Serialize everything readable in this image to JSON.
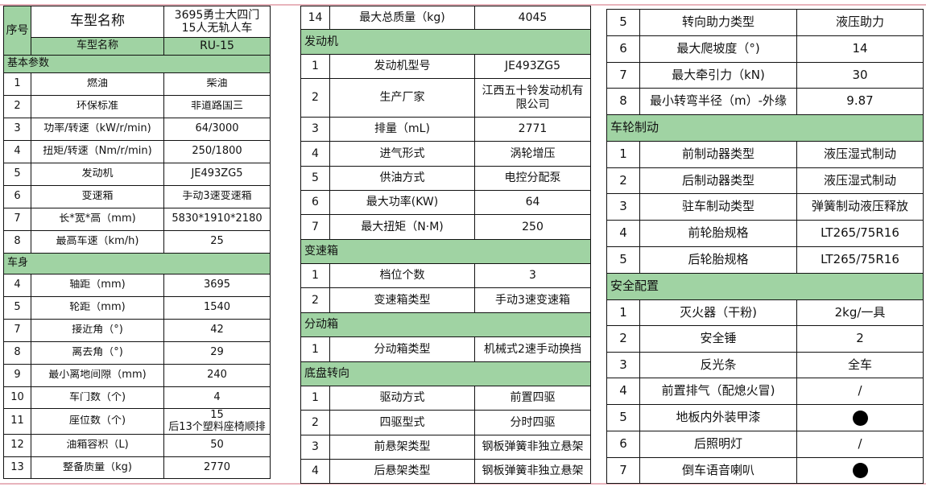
{
  "header": {
    "seq_label": "序号",
    "model_name_label": "车型名称",
    "model_name_value": "3695勇士大四门\n15人无轨人车",
    "model_code_label": "车型名称",
    "model_code_value": "RU-15"
  },
  "tables": [
    {
      "rows": [
        {
          "section": "基本参数"
        },
        {
          "no": "1",
          "name": "燃油",
          "value": "柴油"
        },
        {
          "no": "2",
          "name": "环保标准",
          "value": "非道路国三"
        },
        {
          "no": "3",
          "name": "功率/转速（kW/r/min)",
          "value": "64/3000"
        },
        {
          "no": "4",
          "name": "扭矩/转速（Nm/r/min)",
          "value": "250/1800"
        },
        {
          "no": "5",
          "name": "发动机",
          "value": "JE493ZG5"
        },
        {
          "no": "6",
          "name": "变速箱",
          "value": "手动3速变速箱"
        },
        {
          "no": "7",
          "name": "长*宽*高（mm)",
          "value": "5830*1910*2180"
        },
        {
          "no": "8",
          "name": "最高车速（km/h)",
          "value": "25"
        },
        {
          "section": "车身"
        },
        {
          "no": "4",
          "name": "轴距（mm)",
          "value": "3695"
        },
        {
          "no": "5",
          "name": "轮距（mm)",
          "value": "1540"
        },
        {
          "no": "7",
          "name": "接近角（°)",
          "value": "42"
        },
        {
          "no": "8",
          "name": "离去角（°)",
          "value": "29"
        },
        {
          "no": "9",
          "name": "最小离地间隙（mm)",
          "value": "240"
        },
        {
          "no": "10",
          "name": "车门数（个)",
          "value": "4"
        },
        {
          "no": "11",
          "name": "座位数（个)",
          "value": "15\n后13个塑料座椅顺排"
        },
        {
          "no": "12",
          "name": "油箱容积（L)",
          "value": "50"
        },
        {
          "no": "13",
          "name": "整备质量（kg)",
          "value": "2770"
        }
      ]
    },
    {
      "rows": [
        {
          "no": "14",
          "name": "最大总质量（kg)",
          "value": "4045"
        },
        {
          "section": "发动机"
        },
        {
          "no": "1",
          "name": "发动机型号",
          "value": "JE493ZG5"
        },
        {
          "no": "2",
          "name": "生产厂家",
          "value": "江西五十铃发动机有\n限公司"
        },
        {
          "no": "3",
          "name": "排量（mL)",
          "value": "2771"
        },
        {
          "no": "4",
          "name": "进气形式",
          "value": "涡轮增压"
        },
        {
          "no": "5",
          "name": "供油方式",
          "value": "电控分配泵"
        },
        {
          "no": "6",
          "name": "最大功率(KW)",
          "value": "64"
        },
        {
          "no": "7",
          "name": "最大扭矩（N·M)",
          "value": "250"
        },
        {
          "section": "变速箱"
        },
        {
          "no": "1",
          "name": "档位个数",
          "value": "3"
        },
        {
          "no": "2",
          "name": "变速箱类型",
          "value": "手动3速变速箱"
        },
        {
          "section": "分动箱"
        },
        {
          "no": "1",
          "name": "分动箱类型",
          "value": "机械式2速手动换挡"
        },
        {
          "section": "底盘转向"
        },
        {
          "no": "1",
          "name": "驱动方式",
          "value": "前置四驱"
        },
        {
          "no": "2",
          "name": "四驱型式",
          "value": "分时四驱"
        },
        {
          "no": "3",
          "name": "前悬架类型",
          "value": "钢板弹簧非独立悬架"
        },
        {
          "no": "4",
          "name": "后悬架类型",
          "value": "钢板弹簧非独立悬架"
        }
      ]
    },
    {
      "rows": [
        {
          "no": "5",
          "name": "转向助力类型",
          "value": "液压助力"
        },
        {
          "no": "6",
          "name": "最大爬坡度（°)",
          "value": "14"
        },
        {
          "no": "7",
          "name": "最大牵引力（kN)",
          "value": "30"
        },
        {
          "no": "8",
          "name": "最小转弯半径（m）-外缘",
          "value": "9.87"
        },
        {
          "section": "车轮制动"
        },
        {
          "no": "1",
          "name": "前制动器类型",
          "value": "液压湿式制动"
        },
        {
          "no": "2",
          "name": "后制动器类型",
          "value": "液压湿式制动"
        },
        {
          "no": "3",
          "name": "驻车制动类型",
          "value": "弹簧制动液压释放"
        },
        {
          "no": "4",
          "name": "前轮胎规格",
          "value": "LT265/75R16"
        },
        {
          "no": "5",
          "name": "后轮胎规格",
          "value": "LT265/75R16"
        },
        {
          "section": "安全配置"
        },
        {
          "no": "1",
          "name": "灭火器（干粉)",
          "value": "2kg/一具"
        },
        {
          "no": "2",
          "name": "安全锤",
          "value": "2"
        },
        {
          "no": "3",
          "name": "反光条",
          "value": "全车"
        },
        {
          "no": "4",
          "name": "前置排气（配熄火冒)",
          "value": "/"
        },
        {
          "no": "5",
          "name": "地板内外装甲漆",
          "value": "",
          "icon": "filled-circle-icon"
        },
        {
          "no": "6",
          "name": "后照明灯",
          "value": "/"
        },
        {
          "no": "7",
          "name": "倒车语音喇叭",
          "value": "",
          "icon": "filled-circle-icon"
        }
      ]
    }
  ],
  "colors": {
    "section_bg": "#a0d3a3",
    "border": "#111111",
    "page_rule": "#e8b4bc"
  }
}
